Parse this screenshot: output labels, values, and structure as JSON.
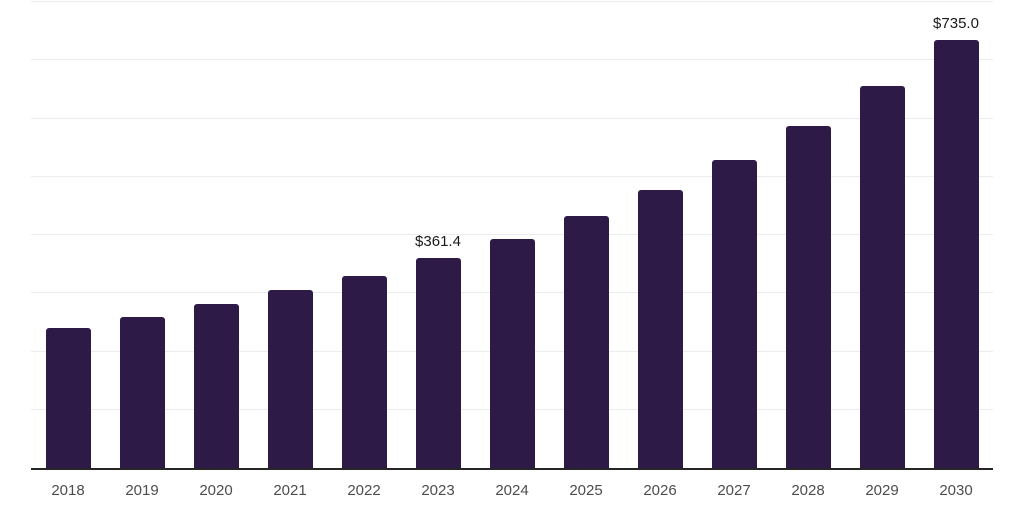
{
  "chart_data": {
    "type": "bar",
    "title": "",
    "xlabel": "",
    "ylabel": "",
    "categories": [
      "2018",
      "2019",
      "2020",
      "2021",
      "2022",
      "2023",
      "2024",
      "2025",
      "2026",
      "2027",
      "2028",
      "2029",
      "2030"
    ],
    "values": [
      241.0,
      259.0,
      281.5,
      305.5,
      329.5,
      361.4,
      394.0,
      432.5,
      477.5,
      528.5,
      587.5,
      656.0,
      735.0
    ],
    "value_labels": [
      "",
      "",
      "",
      "",
      "",
      "$361.4",
      "",
      "",
      "",
      "",
      "",
      "",
      "$735.0"
    ],
    "ylim": [
      0,
      800
    ],
    "gridline_step": 100,
    "grid": "horizontal",
    "legend": "none"
  },
  "style": {
    "bar_color": "#2e1a47",
    "grid_color": "#ececec",
    "axis_color": "#262626",
    "tick_label_color": "#4d4d4d",
    "value_label_color": "#1a1a1a",
    "background": "#ffffff"
  }
}
